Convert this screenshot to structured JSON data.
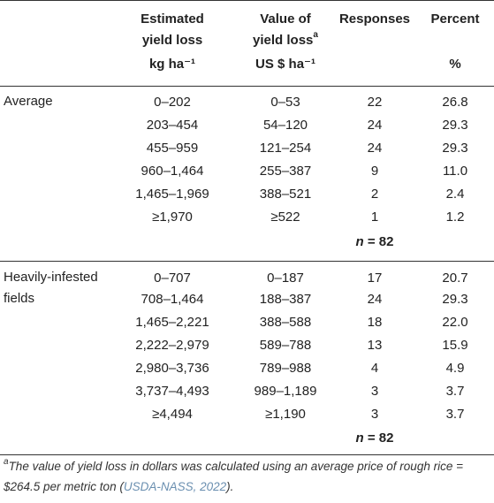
{
  "columns": [
    {
      "line1": "",
      "line2": "",
      "unit": ""
    },
    {
      "line1": "Estimated",
      "line2": "yield loss",
      "unit": "kg ha⁻¹"
    },
    {
      "line1": "Value of",
      "line2": "yield loss",
      "sup": "a",
      "unit": "US $ ha⁻¹"
    },
    {
      "line1": "Responses",
      "line2": "",
      "unit": ""
    },
    {
      "line1": "Percent",
      "line2": "",
      "unit": "%"
    }
  ],
  "groups": [
    {
      "label_lines": [
        "Average"
      ],
      "rows": [
        {
          "loss": "0–202",
          "value": "0–53",
          "responses": "22",
          "percent": "26.8"
        },
        {
          "loss": "203–454",
          "value": "54–120",
          "responses": "24",
          "percent": "29.3"
        },
        {
          "loss": "455–959",
          "value": "121–254",
          "responses": "24",
          "percent": "29.3"
        },
        {
          "loss": "960–1,464",
          "value": "255–387",
          "responses": "9",
          "percent": "11.0"
        },
        {
          "loss": "1,465–1,969",
          "value": "388–521",
          "responses": "2",
          "percent": "2.4"
        },
        {
          "loss": "≥1,970",
          "value": "≥522",
          "responses": "1",
          "percent": "1.2"
        }
      ],
      "n_label": "n",
      "n_value": " = 82"
    },
    {
      "label_lines": [
        "Heavily-infested",
        "fields"
      ],
      "rows": [
        {
          "loss": "0–707",
          "value": "0–187",
          "responses": "17",
          "percent": "20.7"
        },
        {
          "loss": "708–1,464",
          "value": "188–387",
          "responses": "24",
          "percent": "29.3"
        },
        {
          "loss": "1,465–2,221",
          "value": "388–588",
          "responses": "18",
          "percent": "22.0"
        },
        {
          "loss": "2,222–2,979",
          "value": "589–788",
          "responses": "13",
          "percent": "15.9"
        },
        {
          "loss": "2,980–3,736",
          "value": "789–988",
          "responses": "4",
          "percent": "4.9"
        },
        {
          "loss": "3,737–4,493",
          "value": "989–1,189",
          "responses": "3",
          "percent": "3.7"
        },
        {
          "loss": "≥4,494",
          "value": "≥1,190",
          "responses": "3",
          "percent": "3.7"
        }
      ],
      "n_label": "n",
      "n_value": " = 82"
    }
  ],
  "footnote": {
    "mark": "a",
    "text": "The value of yield loss in dollars was calculated using an average price of rough rice = $264.5 per metric ton (",
    "citation": "USDA-NASS, 2022",
    "end": ")."
  }
}
